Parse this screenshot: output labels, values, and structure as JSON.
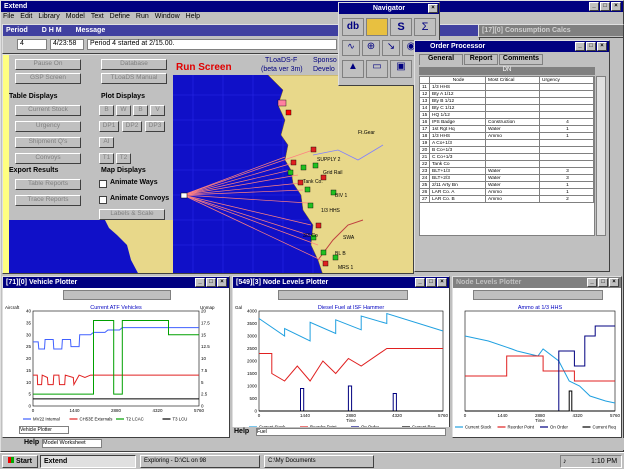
{
  "app": {
    "title": "Extend",
    "menu": [
      "File",
      "Edit",
      "Library",
      "Model",
      "Text",
      "Define",
      "Run",
      "Window",
      "Help"
    ]
  },
  "model_window": {
    "title_parts": [
      "Period",
      "D  H  M",
      "Message"
    ],
    "period": "4",
    "time": "4/23:58",
    "message": "Period 4 started at 2/15.00."
  },
  "consumption_calc": {
    "title": "[17][0]  Consumption Calcs"
  },
  "run_screen": {
    "title": "Run Screen",
    "pause_btn": "Pause On",
    "gsp_btn": "GSP Screen",
    "database_btn": "Database",
    "tloads_btn": "TLoaDS Manual",
    "table_displays": "Table Displays",
    "plot_displays": "Plot Displays",
    "current_stock": "Current Stock",
    "urgency": "Urgency",
    "shipment": "Shipment Q's",
    "convoys": "Convoys",
    "plot_btns": [
      "B",
      "W",
      "B",
      "V",
      "DP1",
      "DP2",
      "DP3",
      "AI",
      "T1",
      "T2"
    ],
    "export_results": "Export Results",
    "map_displays": "Map Displays",
    "table_reports": "Table Reports",
    "trace_reports": "Trace Reports",
    "animate_ways": "Animate Ways",
    "animate_convoys": "Animate Convoys",
    "labels_scale": "Labels & Scale",
    "tloads_title": "TLoaDS-F",
    "sponsor": "Sponso",
    "beta": "(beta ver 3m)",
    "develo": "Develo"
  },
  "map_labels": [
    "Ft.Gear",
    "SUPPLY 2",
    "Grid Rail",
    "Tank Co.",
    "BIV 1",
    "1/3 HHS",
    "3/3 Co",
    "SWA",
    "BL B",
    "MRS 1"
  ],
  "navigator": {
    "title": "Navigator",
    "row1": [
      "db",
      "map",
      "S",
      "Σ"
    ],
    "row2": [
      "O",
      "target",
      "down",
      "rec",
      "?"
    ],
    "row3": [
      "tri",
      "rect",
      "disk",
      "wrench"
    ]
  },
  "order_processor": {
    "title": "Order Processor",
    "tabs": [
      "General",
      "Report",
      "Comments"
    ],
    "list_title": "DN",
    "headers": [
      "Node",
      "Most Critical",
      "Urgency"
    ],
    "rows": [
      [
        "1/3 HHS",
        "",
        ""
      ],
      [
        "Bty A 1/12",
        "",
        ""
      ],
      [
        "Bty B 1/12",
        "",
        ""
      ],
      [
        "Bty C 1/12",
        "",
        ""
      ],
      [
        "HQ 1/12",
        "",
        ""
      ],
      [
        "IPS Badge",
        "Construction",
        "4"
      ],
      [
        "1st Rgt Hq",
        "Water",
        "1"
      ],
      [
        "1/3 HHS",
        "Ammo",
        "1"
      ],
      [
        "A Co+1/3",
        "",
        ""
      ],
      [
        "B Co+1/3",
        "",
        ""
      ],
      [
        "C Co+1/3",
        "",
        ""
      ],
      [
        "Tank Co",
        "",
        ""
      ],
      [
        "BLT+1/3",
        "Water",
        "3"
      ],
      [
        "BLT+2/3",
        "Water",
        "3"
      ],
      [
        "2/11 Arty Bn",
        "Water",
        "1"
      ],
      [
        "LAR Co. A",
        "Ammo",
        "1"
      ],
      [
        "LAR Co. B",
        "Ammo",
        "2"
      ]
    ]
  },
  "vehicle_plotter": {
    "title": "[71][0]  Vehicle Plotter",
    "chart_title": "Current ATF Vehicles",
    "ylabel_left": "Aircraft",
    "ylabel_right": "Unmap",
    "tab": "Vehicle Plotter",
    "xticks": [
      "0",
      "1440",
      "2880",
      "4320",
      "5760"
    ],
    "yticks": [
      "40",
      "35",
      "30",
      "25",
      "20",
      "15",
      "10",
      "5",
      "0"
    ],
    "ryticks": [
      "20",
      "17.5",
      "15",
      "12.5",
      "10",
      "7.5",
      "5",
      "2.5",
      "0"
    ],
    "legend": [
      "MV22 Internal",
      "CH53E Externals",
      "T2 LCAC",
      "T3 LCU"
    ]
  },
  "node_plotter1": {
    "title": "[549][3]  Node Levels Plotter",
    "chart_title": "Diesel Fuel at ISF Hammer",
    "ylabel": "Gal",
    "xlabel": "Time",
    "yticks": [
      "4000",
      "3500",
      "3000",
      "2500",
      "2000",
      "1500",
      "1000",
      "500",
      "0"
    ],
    "xticks": [
      "0",
      "1440",
      "2880",
      "4320",
      "5760"
    ],
    "legend": [
      "Current Stock",
      "Reorder Point",
      "On Order",
      "Current Req"
    ]
  },
  "node_plotter2": {
    "title": "Node Levels Plotter",
    "chart_title": "Ammo at 1/3 HHS",
    "xlabel": "Time",
    "xticks": [
      "0",
      "1440",
      "2880",
      "4320",
      "5760"
    ],
    "legend": [
      "Current Stock",
      "Reorder Point",
      "On Order",
      "Current Req"
    ]
  },
  "help": {
    "label": "Help",
    "value": "Fuel",
    "model_worksheet": "Model Worksheet",
    "help2": "Help"
  },
  "chart_data": [
    {
      "type": "line",
      "title": "Current ATF Vehicles",
      "xlabel": "",
      "ylabel": "Aircraft",
      "xlim": [
        0,
        5760
      ],
      "ylim": [
        0,
        40
      ],
      "series": [
        {
          "name": "MV22 Internal",
          "color": "#4060ff",
          "points": [
            [
              0,
              27
            ],
            [
              180,
              27
            ],
            [
              200,
              24
            ],
            [
              400,
              24
            ],
            [
              420,
              28
            ],
            [
              700,
              28
            ],
            [
              720,
              24
            ],
            [
              1000,
              24
            ],
            [
              1020,
              28
            ],
            [
              1300,
              28
            ],
            [
              1320,
              25
            ],
            [
              1600,
              25
            ],
            [
              1620,
              30
            ],
            [
              2000,
              30
            ],
            [
              2100,
              31
            ],
            [
              2500,
              31
            ],
            [
              2600,
              32
            ],
            [
              3000,
              32
            ],
            [
              3100,
              33
            ],
            [
              5760,
              33
            ]
          ]
        },
        {
          "name": "CH53E Externals",
          "color": "#e02020",
          "points": [
            [
              0,
              13
            ],
            [
              150,
              13
            ],
            [
              160,
              9
            ],
            [
              300,
              9
            ],
            [
              320,
              13
            ],
            [
              500,
              12
            ],
            [
              520,
              9
            ],
            [
              700,
              9
            ],
            [
              720,
              13
            ],
            [
              900,
              13
            ],
            [
              920,
              9
            ],
            [
              1100,
              9
            ],
            [
              1120,
              13
            ],
            [
              1400,
              12
            ],
            [
              1420,
              9
            ],
            [
              1600,
              13
            ],
            [
              1800,
              12
            ],
            [
              2000,
              13
            ],
            [
              5760,
              13
            ]
          ]
        },
        {
          "name": "T2 LCAC",
          "color": "#00a000",
          "points": [
            [
              0,
              5
            ],
            [
              2100,
              5
            ],
            [
              2100,
              36
            ],
            [
              2800,
              36
            ],
            [
              2800,
              5
            ],
            [
              3100,
              5
            ],
            [
              3100,
              36
            ],
            [
              4700,
              36
            ],
            [
              4700,
              30
            ],
            [
              5760,
              30
            ]
          ]
        },
        {
          "name": "T3 LCU",
          "color": "#000000",
          "points": [
            [
              0,
              3
            ],
            [
              5760,
              3
            ]
          ]
        }
      ]
    },
    {
      "type": "line",
      "title": "Diesel Fuel at ISF Hammer",
      "xlabel": "Time",
      "ylabel": "Gal",
      "xlim": [
        0,
        5760
      ],
      "ylim": [
        0,
        4000
      ],
      "series": [
        {
          "name": "Current Stock",
          "color": "#20a0e0",
          "points": [
            [
              0,
              3700
            ],
            [
              800,
              3000
            ],
            [
              800,
              3300
            ],
            [
              1600,
              2800
            ],
            [
              1600,
              3550
            ],
            [
              2400,
              3100
            ],
            [
              2400,
              3650
            ],
            [
              3200,
              3250
            ],
            [
              3200,
              3800
            ],
            [
              4000,
              3500
            ],
            [
              4000,
              3900
            ],
            [
              5760,
              3200
            ]
          ]
        },
        {
          "name": "Reorder Point",
          "color": "#e02020",
          "points": [
            [
              0,
              2300
            ],
            [
              400,
              2300
            ],
            [
              400,
              1500
            ],
            [
              800,
              1200
            ],
            [
              1200,
              1800
            ],
            [
              1600,
              1200
            ],
            [
              2000,
              2000
            ],
            [
              2400,
              1500
            ],
            [
              2800,
              2100
            ],
            [
              3200,
              1800
            ],
            [
              4000,
              2500
            ],
            [
              5760,
              2500
            ]
          ]
        },
        {
          "name": "On Order",
          "color": "#000080",
          "points": [
            [
              1300,
              0
            ],
            [
              1300,
              900
            ],
            [
              1400,
              900
            ],
            [
              1400,
              0
            ],
            [
              2800,
              0
            ],
            [
              2800,
              1000
            ],
            [
              2900,
              1000
            ],
            [
              2900,
              0
            ],
            [
              4200,
              0
            ],
            [
              4200,
              700
            ],
            [
              4300,
              700
            ],
            [
              4300,
              0
            ]
          ]
        },
        {
          "name": "Current Req",
          "color": "#000000",
          "points": [
            [
              0,
              0
            ],
            [
              5760,
              0
            ]
          ]
        }
      ]
    },
    {
      "type": "line",
      "title": "Ammo at 1/3 HHS",
      "xlabel": "Time",
      "ylabel": "",
      "xlim": [
        0,
        5760
      ],
      "ylim": [
        0,
        100
      ],
      "series": [
        {
          "name": "Current Stock",
          "color": "#20a0e0",
          "points": [
            [
              0,
              75
            ],
            [
              900,
              70
            ],
            [
              1800,
              62
            ],
            [
              2000,
              60
            ],
            [
              2800,
              55
            ],
            [
              3000,
              62
            ],
            [
              3600,
              50
            ],
            [
              4000,
              30
            ],
            [
              4400,
              25
            ],
            [
              4800,
              15
            ],
            [
              5400,
              10
            ],
            [
              5760,
              8
            ]
          ]
        },
        {
          "name": "Reorder Point",
          "color": "#e02020",
          "points": [
            [
              0,
              35
            ],
            [
              1600,
              35
            ],
            [
              1600,
              55
            ],
            [
              3000,
              55
            ],
            [
              3000,
              40
            ],
            [
              4200,
              40
            ],
            [
              4200,
              30
            ],
            [
              5760,
              30
            ]
          ]
        },
        {
          "name": "On Order",
          "color": "#000080",
          "points": [
            [
              0,
              0
            ],
            [
              3600,
              0
            ],
            [
              3600,
              60
            ],
            [
              4200,
              60
            ],
            [
              4200,
              45
            ],
            [
              4600,
              45
            ],
            [
              4600,
              75
            ],
            [
              5000,
              75
            ],
            [
              5000,
              85
            ],
            [
              5760,
              85
            ]
          ]
        },
        {
          "name": "Current Req",
          "color": "#000000",
          "points": [
            [
              0,
              0
            ],
            [
              4000,
              0
            ],
            [
              4000,
              20
            ],
            [
              4100,
              20
            ],
            [
              4100,
              0
            ],
            [
              5760,
              0
            ]
          ]
        }
      ]
    }
  ],
  "taskbar": {
    "start": "Start",
    "items": [
      "Extend",
      "Exploring - D:\\CL on 98",
      "C:\\My Documents"
    ],
    "clock": "1:10 PM"
  }
}
